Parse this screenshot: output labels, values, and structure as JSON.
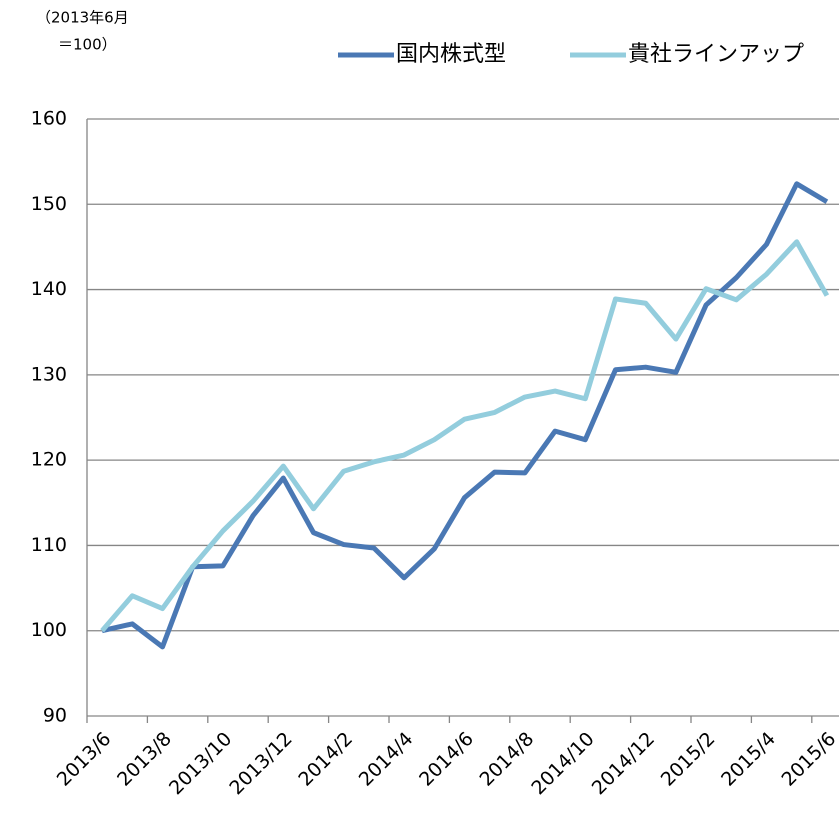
{
  "chart_data": {
    "type": "line",
    "y_note": [
      "（2013年6月",
      "＝100）"
    ],
    "categories": [
      "2013/6",
      null,
      "2013/8",
      null,
      "2013/10",
      null,
      "2013/12",
      null,
      "2014/2",
      null,
      "2014/4",
      null,
      "2014/6",
      null,
      "2014/8",
      null,
      "2014/10",
      null,
      "2014/12",
      null,
      "2015/2",
      null,
      "2015/4",
      null,
      "2015/6"
    ],
    "series": [
      {
        "name": "国内株式型",
        "color": "#4a78b4",
        "values": [
          100,
          100.8,
          98.1,
          107.5,
          107.6,
          113.5,
          117.9,
          111.5,
          110.1,
          109.7,
          106.2,
          109.6,
          115.6,
          118.6,
          118.5,
          123.4,
          122.4,
          130.6,
          130.9,
          130.3,
          138.2,
          141.4,
          145.3,
          152.4,
          150.3
        ]
      },
      {
        "name": "貴社ラインアップ",
        "color": "#93cddd",
        "values": [
          100,
          104.1,
          102.6,
          107.5,
          111.7,
          115.2,
          119.3,
          114.3,
          118.7,
          119.8,
          120.6,
          122.4,
          124.8,
          125.6,
          127.4,
          128.1,
          127.2,
          138.9,
          138.4,
          134.2,
          140.1,
          138.8,
          141.8,
          145.6,
          139.3
        ]
      }
    ],
    "ylim": [
      90,
      160
    ],
    "yticks": [
      90,
      100,
      110,
      120,
      130,
      140,
      150,
      160
    ],
    "grid": true
  }
}
